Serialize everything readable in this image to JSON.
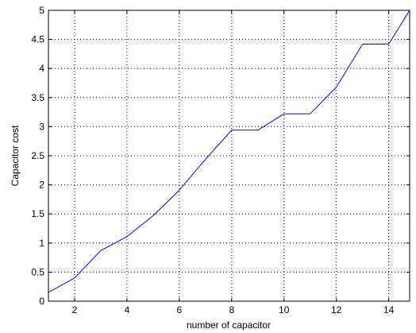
{
  "chart_data": {
    "type": "line",
    "title": "",
    "xlabel": "number of capacitor",
    "ylabel": "Capacitor cost",
    "xlim": [
      1,
      14.8
    ],
    "ylim": [
      0,
      5
    ],
    "xticks": [
      2,
      4,
      6,
      8,
      10,
      12,
      14
    ],
    "yticks": [
      0,
      0.5,
      1,
      1.5,
      2,
      2.5,
      3,
      3.5,
      4,
      4.5,
      5
    ],
    "ytick_labels": [
      "0",
      "0.5",
      "1",
      "1.5",
      "2",
      "2.5",
      "3",
      "3.5",
      "4",
      "4.5",
      "5"
    ],
    "grid": true,
    "grid_style": "dotted",
    "series": [
      {
        "x": [
          1,
          2,
          3,
          4,
          5,
          6,
          7,
          8,
          9,
          10,
          11,
          12,
          13,
          14,
          14.8
        ],
        "y": [
          0.15,
          0.4,
          0.87,
          1.11,
          1.47,
          1.91,
          2.44,
          2.94,
          2.94,
          3.22,
          3.22,
          3.68,
          4.42,
          4.42,
          5.0
        ],
        "color": "#0000ff"
      }
    ]
  }
}
